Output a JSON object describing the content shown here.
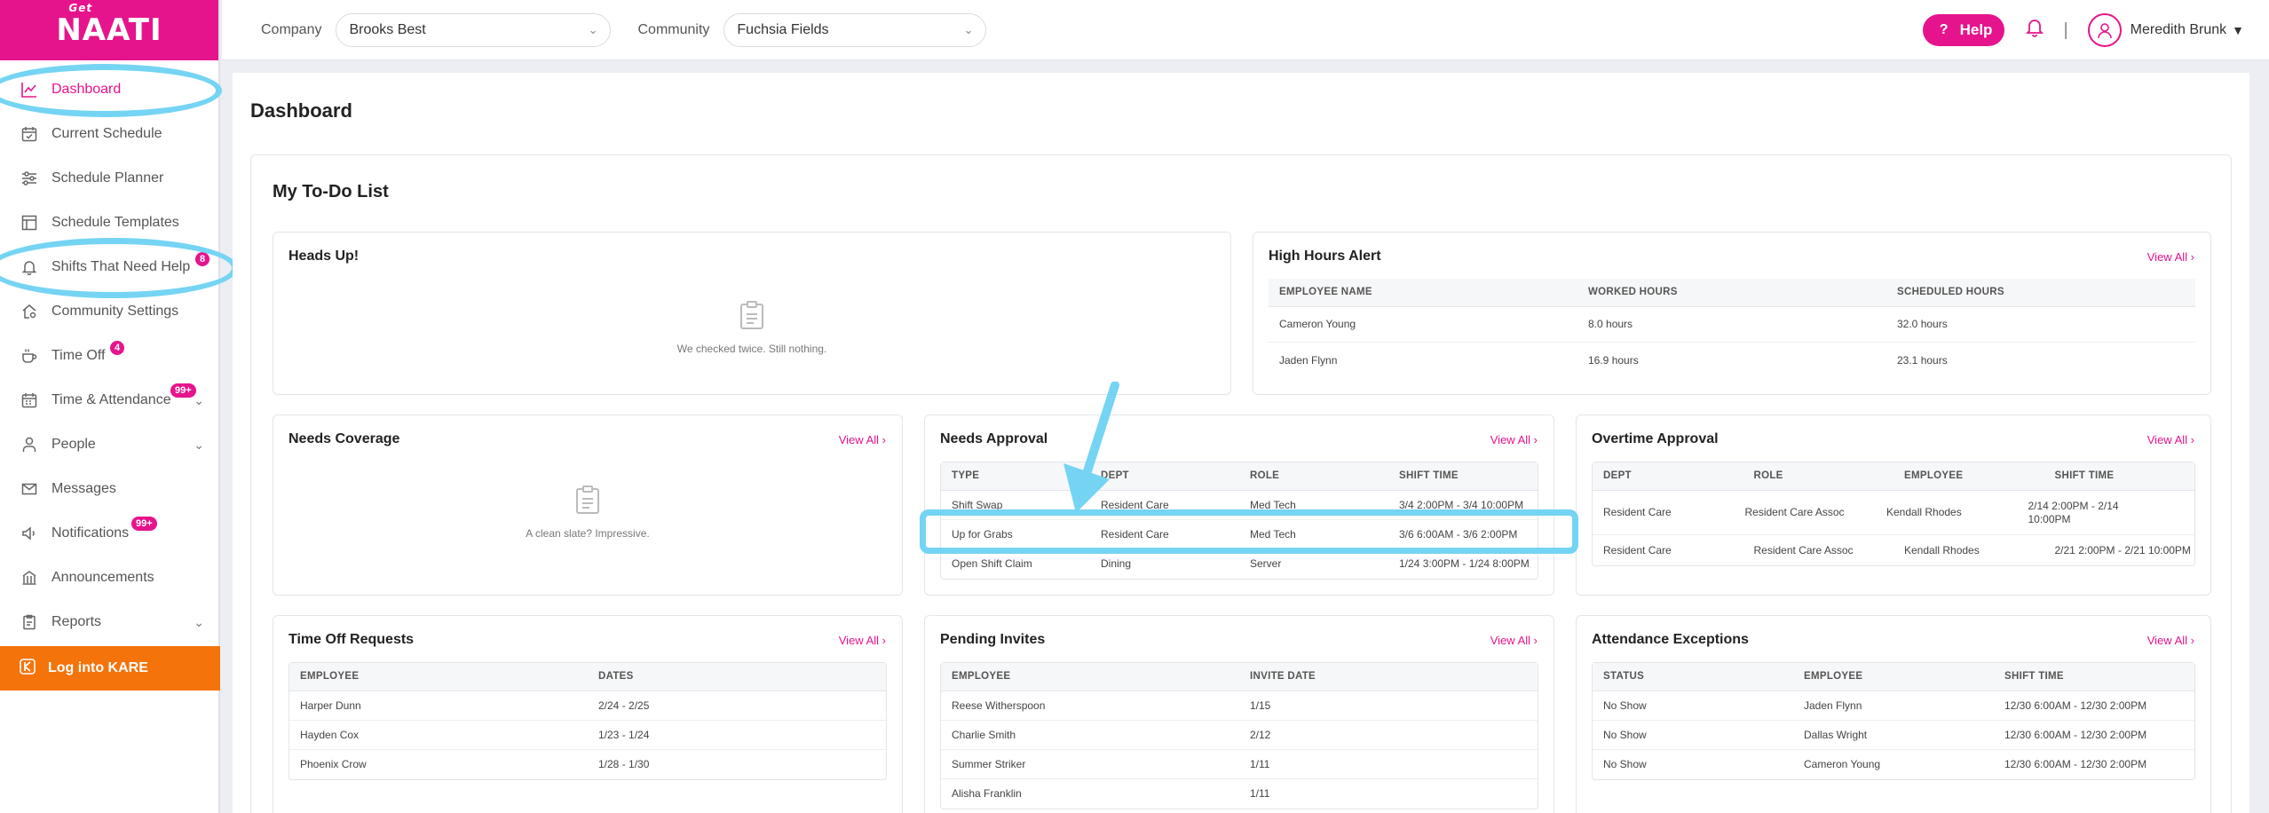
{
  "logo": {
    "top": "Get",
    "main": "NAATI"
  },
  "sidebar": {
    "items": [
      {
        "label": "Dashboard",
        "icon": "chart-line-icon",
        "active": true
      },
      {
        "label": "Current Schedule",
        "icon": "calendar-check-icon"
      },
      {
        "label": "Schedule Planner",
        "icon": "sliders-icon"
      },
      {
        "label": "Schedule Templates",
        "icon": "template-icon"
      },
      {
        "label": "Shifts That Need Help",
        "icon": "bell-icon",
        "badge": "8"
      },
      {
        "label": "Community Settings",
        "icon": "home-gear-icon"
      },
      {
        "label": "Time Off",
        "icon": "coffee-icon",
        "badge": "4"
      },
      {
        "label": "Time & Attendance",
        "icon": "calendar-grid-icon",
        "badge": "99+",
        "expandable": true
      },
      {
        "label": "People",
        "icon": "person-icon",
        "expandable": true
      },
      {
        "label": "Messages",
        "icon": "envelope-icon"
      },
      {
        "label": "Notifications",
        "icon": "speaker-icon",
        "badge": "99+"
      },
      {
        "label": "Announcements",
        "icon": "building-icon"
      },
      {
        "label": "Reports",
        "icon": "clipboard-icon",
        "expandable": true
      }
    ],
    "kare_label": "Log into KARE"
  },
  "topbar": {
    "company_label": "Company",
    "company_value": "Brooks Best",
    "community_label": "Community",
    "community_value": "Fuchsia Fields",
    "help_label": "Help",
    "user_name": "Meredith Brunk"
  },
  "page": {
    "title": "Dashboard",
    "todo_title": "My To-Do List"
  },
  "cards": {
    "heads_up": {
      "title": "Heads Up!",
      "empty_msg": "We checked twice. Still nothing."
    },
    "high_hours": {
      "title": "High Hours Alert",
      "view_all": "View All",
      "headers": [
        "EMPLOYEE NAME",
        "WORKED HOURS",
        "SCHEDULED HOURS"
      ],
      "rows": [
        [
          "Cameron Young",
          "8.0 hours",
          "32.0 hours"
        ],
        [
          "Jaden Flynn",
          "16.9 hours",
          "23.1 hours"
        ]
      ]
    },
    "needs_coverage": {
      "title": "Needs Coverage",
      "view_all": "View All",
      "empty_msg": "A clean slate? Impressive."
    },
    "needs_approval": {
      "title": "Needs Approval",
      "view_all": "View All",
      "headers": [
        "TYPE",
        "DEPT",
        "ROLE",
        "SHIFT TIME"
      ],
      "rows": [
        [
          "Shift Swap",
          "Resident Care",
          "Med Tech",
          "3/4 2:00PM - 3/4 10:00PM"
        ],
        [
          "Up for Grabs",
          "Resident Care",
          "Med Tech",
          "3/6 6:00AM - 3/6 2:00PM"
        ],
        [
          "Open Shift Claim",
          "Dining",
          "Server",
          "1/24 3:00PM - 1/24 8:00PM"
        ]
      ]
    },
    "overtime_approval": {
      "title": "Overtime Approval",
      "view_all": "View All",
      "headers": [
        "DEPT",
        "ROLE",
        "EMPLOYEE",
        "SHIFT TIME"
      ],
      "rows": [
        [
          "Resident Care",
          "Resident Care Assoc",
          "Kendall Rhodes",
          "2/14 2:00PM - 2/14 10:00PM"
        ],
        [
          "Resident Care",
          "Resident Care Assoc",
          "Kendall Rhodes",
          "2/21 2:00PM - 2/21 10:00PM"
        ]
      ]
    },
    "time_off_requests": {
      "title": "Time Off Requests",
      "view_all": "View All",
      "headers": [
        "EMPLOYEE",
        "DATES"
      ],
      "rows": [
        [
          "Harper Dunn",
          "2/24 - 2/25"
        ],
        [
          "Hayden Cox",
          "1/23 - 1/24"
        ],
        [
          "Phoenix Crow",
          "1/28 - 1/30"
        ]
      ]
    },
    "pending_invites": {
      "title": "Pending Invites",
      "view_all": "View All",
      "headers": [
        "EMPLOYEE",
        "INVITE DATE"
      ],
      "rows": [
        [
          "Reese Witherspoon",
          "1/15"
        ],
        [
          "Charlie Smith",
          "2/12"
        ],
        [
          "Summer Striker",
          "1/11"
        ],
        [
          "Alisha Franklin",
          "1/11"
        ]
      ]
    },
    "attendance_exceptions": {
      "title": "Attendance Exceptions",
      "view_all": "View All",
      "headers": [
        "STATUS",
        "EMPLOYEE",
        "SHIFT TIME"
      ],
      "rows": [
        [
          "No Show",
          "Jaden Flynn",
          "12/30 6:00AM - 12/30 2:00PM"
        ],
        [
          "No Show",
          "Dallas Wright",
          "12/30 6:00AM - 12/30 2:00PM"
        ],
        [
          "No Show",
          "Cameron Young",
          "12/30 6:00AM - 12/30 2:00PM"
        ]
      ]
    }
  },
  "colors": {
    "brand": "#e6148c",
    "kare": "#f5730b",
    "highlight": "#75d4f3"
  }
}
